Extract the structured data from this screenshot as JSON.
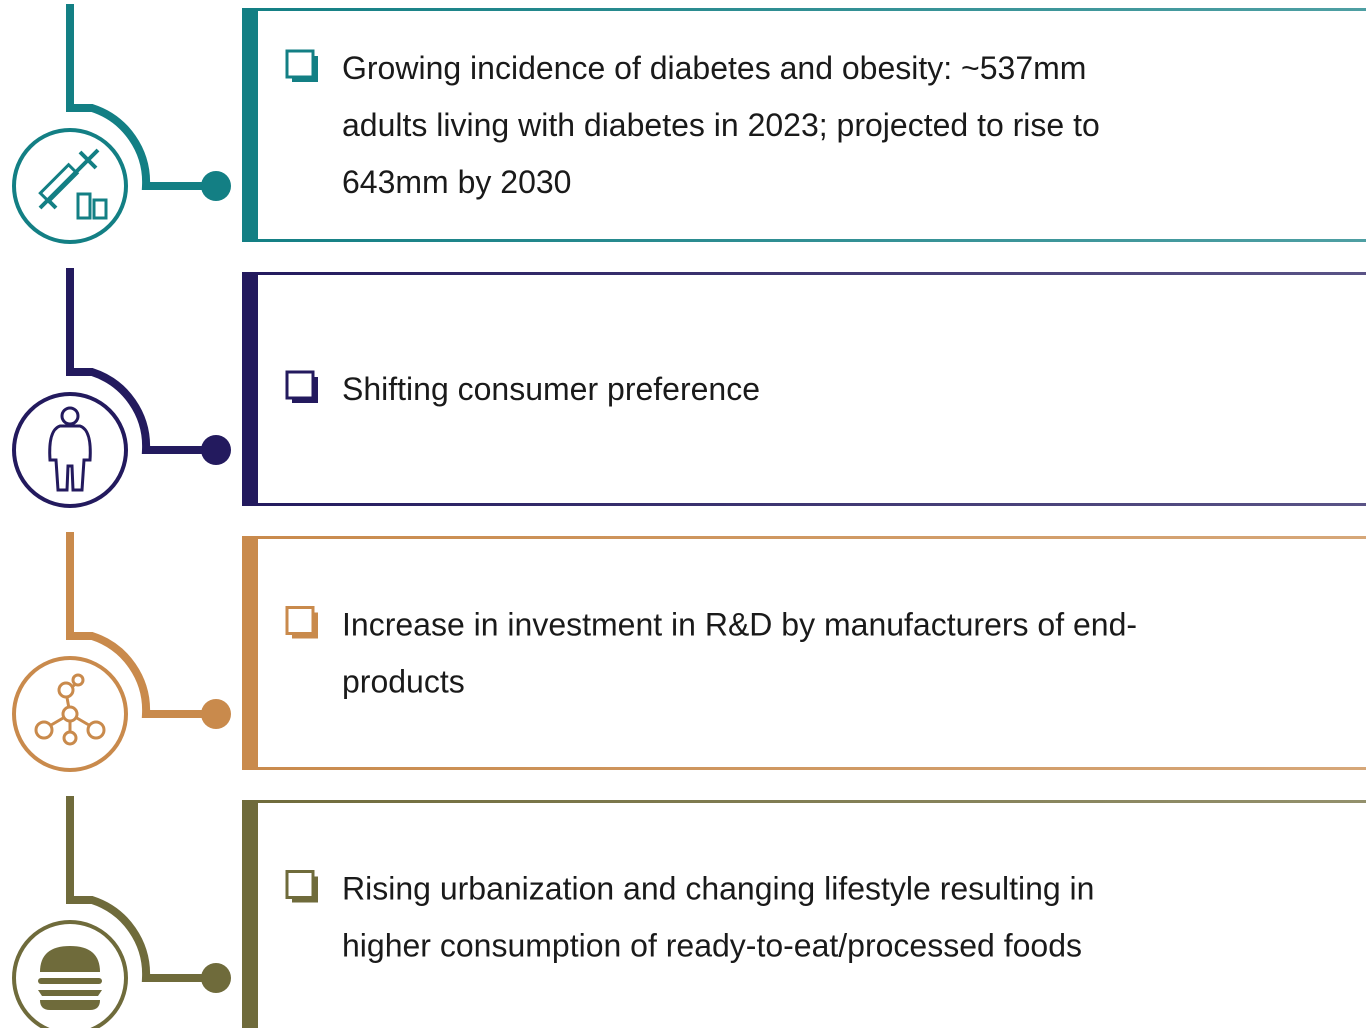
{
  "items": [
    {
      "color": "#137f84",
      "lines": [
        "Growing incidence of diabetes and obesity: ~537mm",
        "adults living with diabetes in 2023; projected to rise to",
        "643mm by 2030"
      ]
    },
    {
      "color": "#231a5e",
      "lines": [
        "Shifting consumer preference"
      ]
    },
    {
      "color": "#c98a4c",
      "lines": [
        "Increase in investment in R&D by manufacturers of end-",
        "products"
      ]
    },
    {
      "color": "#6f6b3b",
      "lines": [
        "Rising urbanization and changing lifestyle resulting in",
        "higher consumption of ready-to-eat/processed foods"
      ]
    }
  ]
}
